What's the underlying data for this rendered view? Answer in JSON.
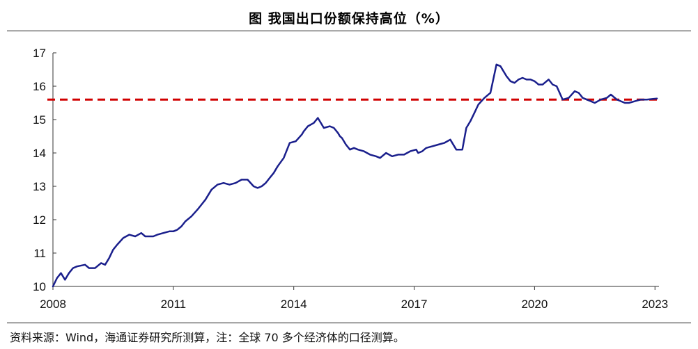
{
  "header": {
    "title": "图  我国出口份额保持高位（%）"
  },
  "footer": {
    "source": "资料来源：Wind，海通证券研究所测算，注：全球 70 多个经济体的口径测算。"
  },
  "colors": {
    "series": "#1a1f8c",
    "reference": "#d00000",
    "axis": "#333333"
  },
  "chart_data": {
    "type": "line",
    "title": "图  我国出口份额保持高位（%）",
    "xlabel": "",
    "ylabel": "",
    "xlim": [
      2008.0,
      2023.1
    ],
    "ylim": [
      10,
      17
    ],
    "y_ticks": [
      "10",
      "11",
      "12",
      "13",
      "14",
      "15",
      "16",
      "17"
    ],
    "x_ticks": [
      "2008",
      "2011",
      "2014",
      "2017",
      "2020",
      "2023"
    ],
    "grid": false,
    "legend": "none",
    "reference_line": {
      "y": 15.6,
      "style": "dashed"
    },
    "series": [
      {
        "x": [
          2008.0,
          2008.1,
          2008.2,
          2008.3,
          2008.4,
          2008.5,
          2008.6,
          2008.8,
          2008.9,
          2009.05,
          2009.2,
          2009.3,
          2009.4,
          2009.5,
          2009.6,
          2009.75,
          2009.9,
          2010.05,
          2010.2,
          2010.3,
          2010.4,
          2010.5,
          2010.6,
          2010.75,
          2010.9,
          2011.0,
          2011.1,
          2011.2,
          2011.3,
          2011.45,
          2011.6,
          2011.7,
          2011.8,
          2011.95,
          2012.1,
          2012.25,
          2012.4,
          2012.55,
          2012.7,
          2012.85,
          2013.0,
          2013.1,
          2013.2,
          2013.3,
          2013.4,
          2013.5,
          2013.6,
          2013.75,
          2013.9,
          2014.05,
          2014.2,
          2014.25,
          2014.35,
          2014.5,
          2014.6,
          2014.75,
          2014.9,
          2015.0,
          2015.1,
          2015.15,
          2015.2,
          2015.3,
          2015.4,
          2015.5,
          2015.6,
          2015.75,
          2015.9,
          2016.05,
          2016.15,
          2016.3,
          2016.45,
          2016.6,
          2016.75,
          2016.9,
          2017.05,
          2017.1,
          2017.2,
          2017.3,
          2017.45,
          2017.6,
          2017.75,
          2017.9,
          2018.05,
          2018.2,
          2018.3,
          2018.4,
          2018.5,
          2018.6,
          2018.75,
          2018.9,
          2019.05,
          2019.15,
          2019.3,
          2019.4,
          2019.5,
          2019.6,
          2019.7,
          2019.8,
          2019.9,
          2020.0,
          2020.1,
          2020.2,
          2020.25,
          2020.35,
          2020.45,
          2020.55,
          2020.7,
          2020.85,
          2021.0,
          2021.1,
          2021.2,
          2021.3,
          2021.4,
          2021.5,
          2021.65,
          2021.8,
          2021.9,
          2022.05,
          2022.15,
          2022.25,
          2022.35,
          2022.5,
          2022.65,
          2022.8,
          2022.95,
          2023.05
        ],
        "y": [
          10.0,
          10.25,
          10.4,
          10.2,
          10.4,
          10.55,
          10.6,
          10.65,
          10.55,
          10.55,
          10.7,
          10.65,
          10.85,
          11.1,
          11.25,
          11.45,
          11.55,
          11.5,
          11.6,
          11.5,
          11.5,
          11.5,
          11.55,
          11.6,
          11.65,
          11.65,
          11.7,
          11.8,
          11.95,
          12.1,
          12.3,
          12.45,
          12.6,
          12.9,
          13.05,
          13.1,
          13.05,
          13.1,
          13.2,
          13.2,
          13.0,
          12.95,
          13.0,
          13.1,
          13.25,
          13.4,
          13.6,
          13.85,
          14.3,
          14.35,
          14.55,
          14.65,
          14.8,
          14.9,
          15.05,
          14.75,
          14.8,
          14.75,
          14.6,
          14.5,
          14.45,
          14.25,
          14.1,
          14.15,
          14.1,
          14.05,
          13.95,
          13.9,
          13.85,
          14.0,
          13.9,
          13.95,
          13.95,
          14.05,
          14.1,
          14.0,
          14.05,
          14.15,
          14.2,
          14.25,
          14.3,
          14.4,
          14.1,
          14.1,
          14.75,
          14.95,
          15.2,
          15.45,
          15.65,
          15.8,
          16.65,
          16.6,
          16.3,
          16.15,
          16.1,
          16.2,
          16.25,
          16.2,
          16.2,
          16.15,
          16.05,
          16.05,
          16.1,
          16.2,
          16.05,
          16.0,
          15.6,
          15.65,
          15.85,
          15.8,
          15.65,
          15.6,
          15.55,
          15.5,
          15.6,
          15.65,
          15.75,
          15.6,
          15.55,
          15.5,
          15.5,
          15.55,
          15.6,
          15.6,
          15.62,
          15.63
        ]
      }
    ]
  }
}
